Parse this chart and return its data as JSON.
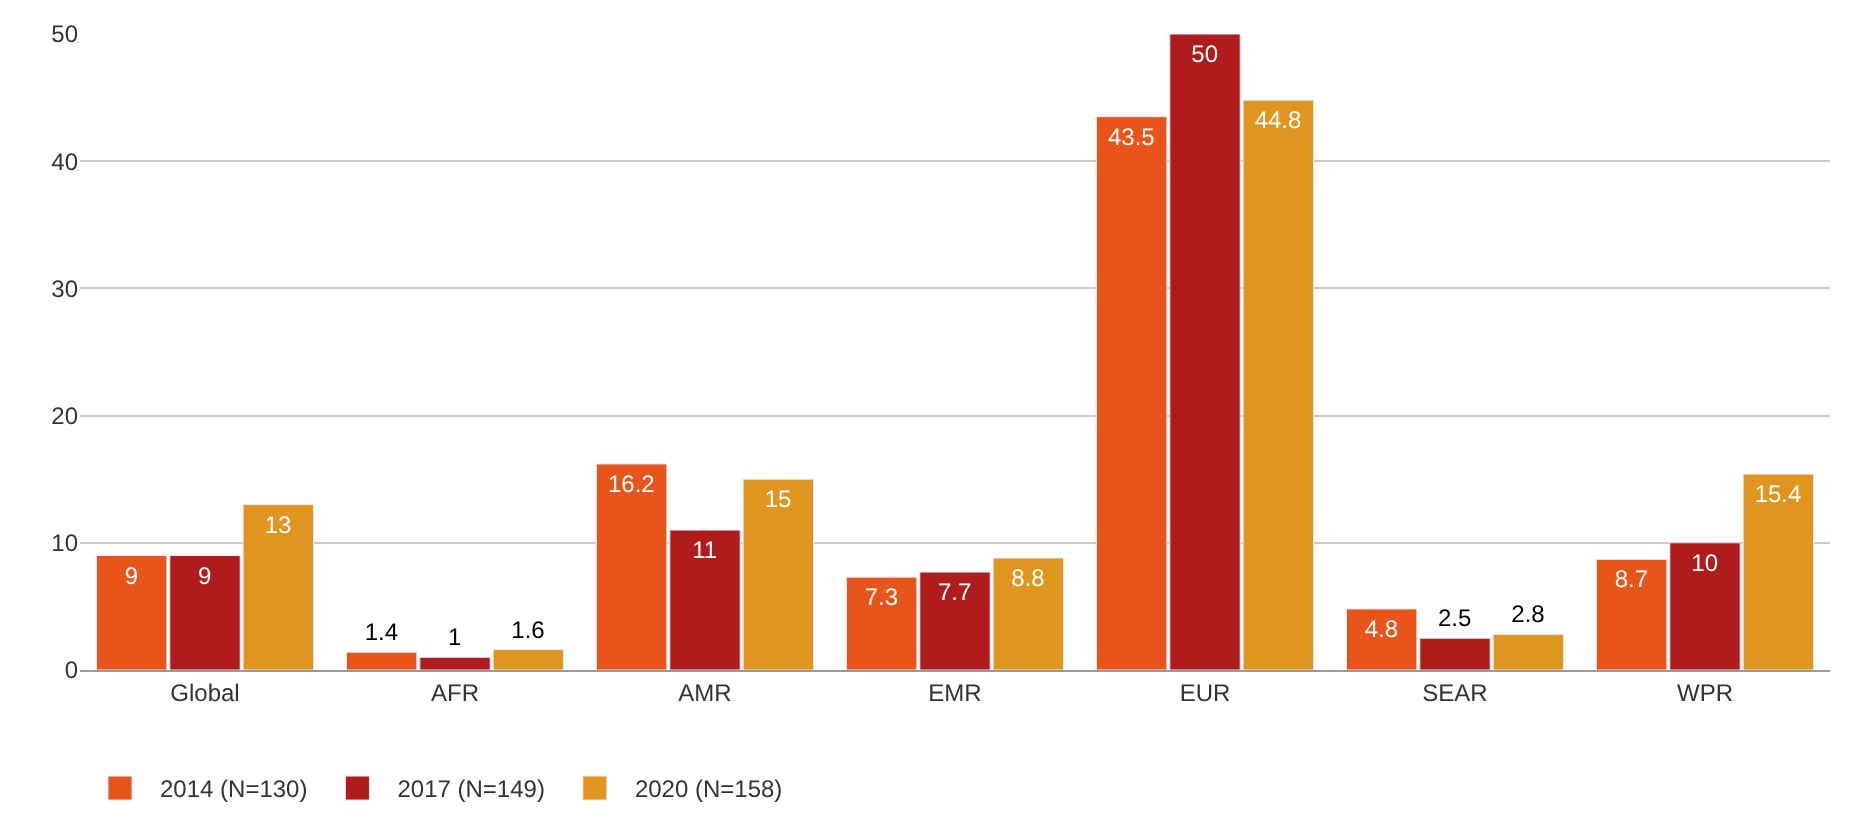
{
  "chart_data": {
    "type": "bar",
    "categories": [
      "Global",
      "AFR",
      "AMR",
      "EMR",
      "EUR",
      "SEAR",
      "WPR"
    ],
    "series": [
      {
        "name": "2014 (N=130)",
        "color": "#e8541a",
        "values": [
          9,
          1.4,
          16.2,
          7.3,
          43.5,
          4.8,
          8.7
        ]
      },
      {
        "name": "2017 (N=149)",
        "color": "#b01c1c",
        "values": [
          9,
          1,
          11,
          7.7,
          50,
          2.5,
          10
        ]
      },
      {
        "name": "2020 (N=158)",
        "color": "#e0961e",
        "values": [
          13,
          1.6,
          15,
          8.8,
          44.8,
          2.8,
          15.4
        ]
      }
    ],
    "ylim": [
      0,
      50
    ],
    "yticks": [
      0,
      10,
      20,
      30,
      40,
      50
    ],
    "grid": "y",
    "legend": "bottom",
    "data_labels": true
  }
}
